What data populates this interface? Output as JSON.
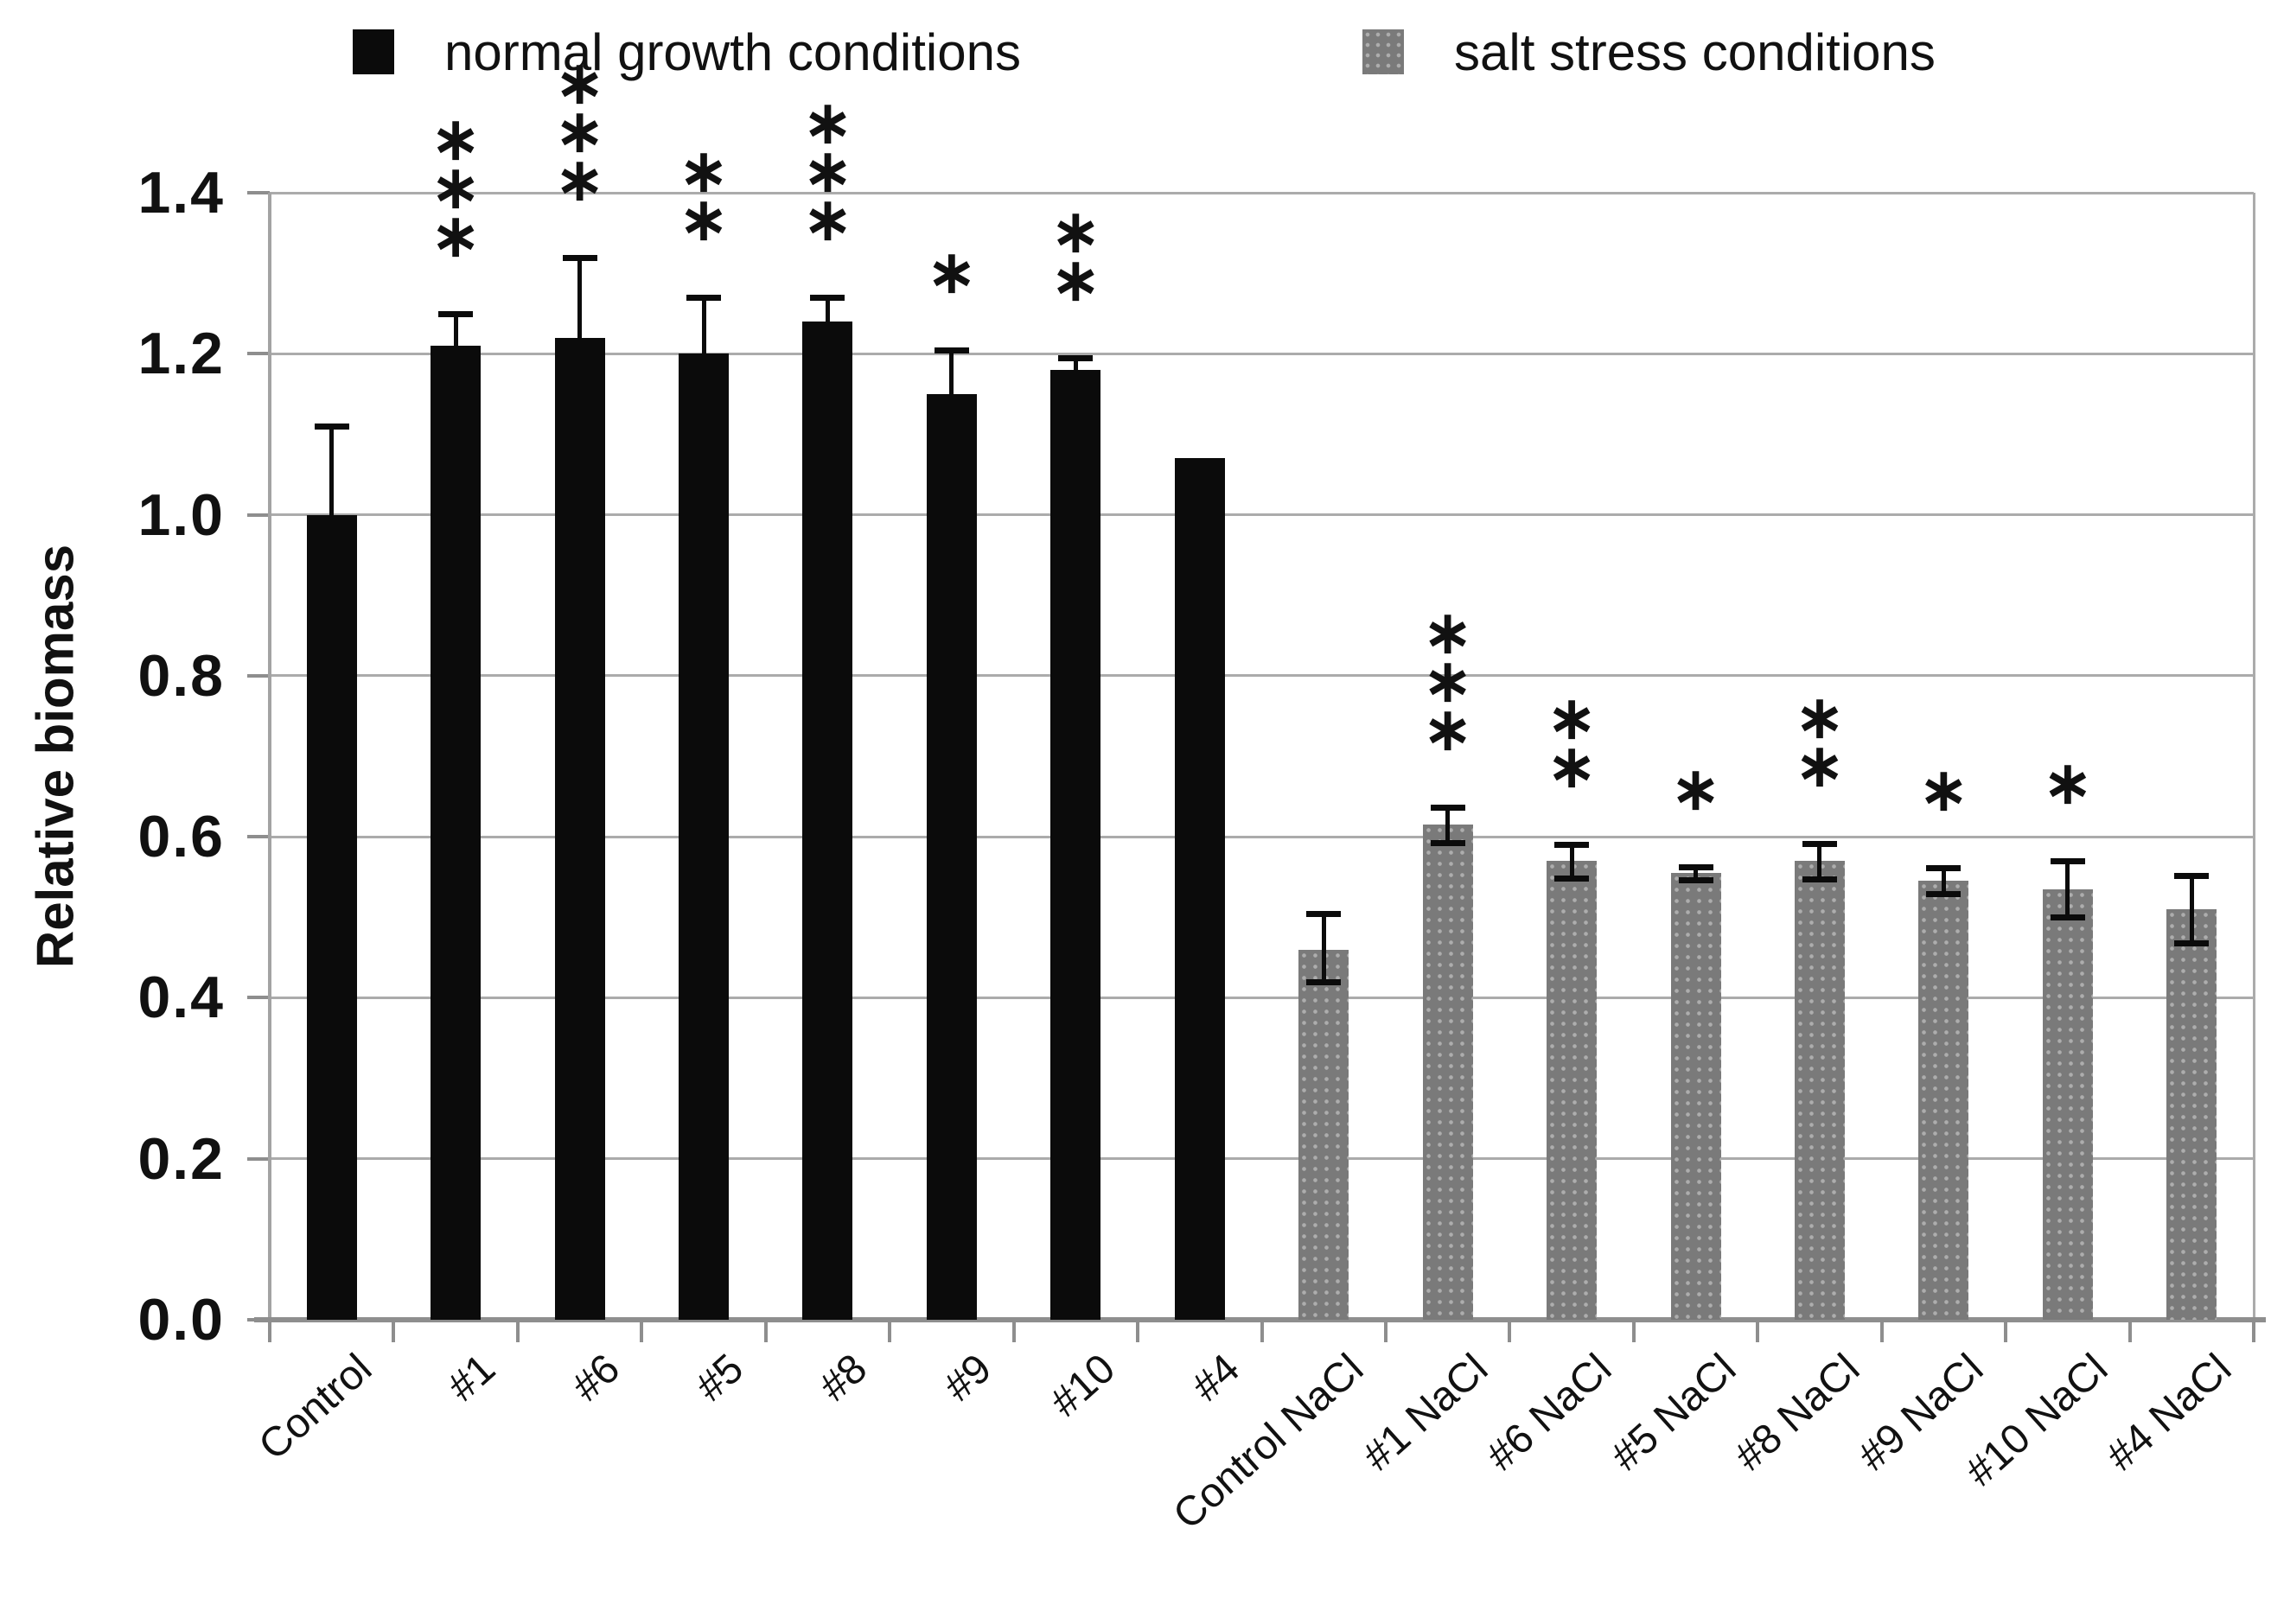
{
  "figure": {
    "background": "#ffffff",
    "bar_color_normal": "#0b0b0b",
    "bar_color_salt": "#7a7a7a",
    "gridline_color": "#ababab",
    "axis_color": "#8e8e8e",
    "error_bar_color": "#0b0b0b"
  },
  "legend": {
    "items": [
      {
        "label": "normal growth conditions",
        "color": "#0b0b0b",
        "swatch": "black-square-icon"
      },
      {
        "label": "salt stress conditions",
        "color": "#7a7a7a",
        "swatch": "gray-dotted-square-icon"
      }
    ]
  },
  "chart_data": {
    "type": "bar",
    "title": "",
    "xlabel": "",
    "ylabel": "Relative biomass",
    "ylim": [
      0,
      1.4
    ],
    "yticks": [
      "0.0",
      "0.2",
      "0.4",
      "0.6",
      "0.8",
      "1.0",
      "1.2",
      "1.4"
    ],
    "grid": true,
    "legend_position": "top",
    "categories": [
      "Control",
      "#1",
      "#6",
      "#5",
      "#8",
      "#9",
      "#10",
      "#4",
      "Control NaCl",
      "#1 NaCl",
      "#6 NaCl",
      "#5 NaCl",
      "#8 NaCl",
      "#9 NaCl",
      "#10 NaCl",
      "#4 NaCl"
    ],
    "series": [
      {
        "name": "normal growth conditions",
        "group": "normal"
      },
      {
        "name": "salt stress conditions",
        "group": "salt"
      }
    ],
    "bars": [
      {
        "label": "Control",
        "group": "normal",
        "value": 1.0,
        "error_up": 0.11,
        "error_down": 0,
        "significance": ""
      },
      {
        "label": "#1",
        "group": "normal",
        "value": 1.21,
        "error_up": 0.04,
        "error_down": 0,
        "significance": "***"
      },
      {
        "label": "#6",
        "group": "normal",
        "value": 1.22,
        "error_up": 0.1,
        "error_down": 0,
        "significance": "***"
      },
      {
        "label": "#5",
        "group": "normal",
        "value": 1.2,
        "error_up": 0.07,
        "error_down": 0,
        "significance": "**"
      },
      {
        "label": "#8",
        "group": "normal",
        "value": 1.24,
        "error_up": 0.03,
        "error_down": 0,
        "significance": "***"
      },
      {
        "label": "#9",
        "group": "normal",
        "value": 1.15,
        "error_up": 0.055,
        "error_down": 0,
        "significance": "*"
      },
      {
        "label": "#10",
        "group": "normal",
        "value": 1.18,
        "error_up": 0.015,
        "error_down": 0,
        "significance": "**"
      },
      {
        "label": "#4",
        "group": "normal",
        "value": 1.07,
        "error_up": 0,
        "error_down": 0,
        "significance": ""
      },
      {
        "label": "Control NaCl",
        "group": "salt",
        "value": 0.46,
        "error_up": 0.045,
        "error_down": 0.04,
        "significance": ""
      },
      {
        "label": "#1 NaCl",
        "group": "salt",
        "value": 0.615,
        "error_up": 0.022,
        "error_down": 0.022,
        "significance": "***"
      },
      {
        "label": "#6 NaCl",
        "group": "salt",
        "value": 0.57,
        "error_up": 0.021,
        "error_down": 0.021,
        "significance": "**"
      },
      {
        "label": "#5 NaCl",
        "group": "salt",
        "value": 0.555,
        "error_up": 0.008,
        "error_down": 0.008,
        "significance": "*"
      },
      {
        "label": "#8 NaCl",
        "group": "salt",
        "value": 0.57,
        "error_up": 0.022,
        "error_down": 0.022,
        "significance": "**"
      },
      {
        "label": "#9 NaCl",
        "group": "salt",
        "value": 0.545,
        "error_up": 0.016,
        "error_down": 0.016,
        "significance": "*"
      },
      {
        "label": "#10 NaCl",
        "group": "salt",
        "value": 0.535,
        "error_up": 0.035,
        "error_down": 0.035,
        "significance": "*"
      },
      {
        "label": "#4 NaCl",
        "group": "salt",
        "value": 0.51,
        "error_up": 0.042,
        "error_down": 0.042,
        "significance": ""
      }
    ]
  }
}
